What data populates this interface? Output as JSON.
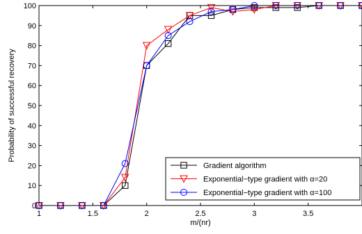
{
  "chart_data": {
    "type": "line",
    "title": "",
    "xlabel": "m/(nr)",
    "ylabel": "Probability of successful recovery",
    "xlim": [
      1,
      4
    ],
    "ylim": [
      0,
      100
    ],
    "xticks": [
      1,
      1.5,
      2,
      2.5,
      3,
      3.5
    ],
    "xtick_labels": [
      "1",
      "1.5",
      "2",
      "2.5",
      "3",
      "3.5"
    ],
    "yticks": [
      0,
      10,
      20,
      30,
      40,
      50,
      60,
      70,
      80,
      90,
      100
    ],
    "ytick_labels": [
      "0",
      "10",
      "20",
      "30",
      "40",
      "50",
      "60",
      "70",
      "80",
      "90",
      "100"
    ],
    "grid": false,
    "legend_position": "bottom-right",
    "x": [
      1,
      1.2,
      1.4,
      1.6,
      1.8,
      2.0,
      2.2,
      2.4,
      2.6,
      2.8,
      3.0,
      3.2,
      3.4,
      3.6,
      3.8,
      4.0
    ],
    "series": [
      {
        "name": "Gradient algorithm",
        "color": "#000000",
        "marker": "square",
        "values": [
          0,
          0,
          0,
          0,
          10,
          70,
          81,
          95,
          95,
          98,
          99,
          99,
          99,
          100,
          100,
          100
        ]
      },
      {
        "name": "Exponential−type gradient with α=20",
        "color": "#ff0000",
        "marker": "triangle-down",
        "values": [
          0,
          0,
          0,
          0,
          14,
          80,
          88,
          95,
          99,
          97,
          98,
          100,
          100,
          100,
          100,
          100
        ]
      },
      {
        "name": "Exponential−type gradient with α=100",
        "color": "#0000ff",
        "marker": "circle",
        "values": [
          0,
          0,
          0,
          0,
          21,
          70,
          85,
          92,
          97,
          98,
          100,
          100,
          100,
          100,
          100,
          100
        ]
      }
    ]
  }
}
